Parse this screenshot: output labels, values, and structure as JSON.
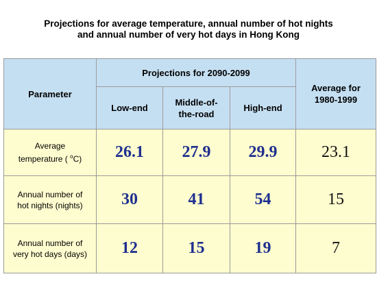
{
  "title": {
    "line1": "Projections for average temperature, annual number of hot nights",
    "line2": "and annual number of very hot days in Hong Kong"
  },
  "table": {
    "header": {
      "parameter": "Parameter",
      "projection_group": "Projections for 2090-2099",
      "low_end": "Low-end",
      "middle_line1": "Middle-of-",
      "middle_line2": "the-road",
      "high_end": "High-end",
      "average_line1": "Average for",
      "average_line2": "1980-1999"
    },
    "rows": [
      {
        "param_line1": "Average",
        "param_line2_pre": "temperature ( ",
        "param_sup": "o",
        "param_line2_post": "C)",
        "low": "26.1",
        "mid": "27.9",
        "high": "29.9",
        "avg": "23.1"
      },
      {
        "param_line1": "Annual number of",
        "param_line2": "hot nights (nights)",
        "low": "30",
        "mid": "41",
        "high": "54",
        "avg": "15"
      },
      {
        "param_line1": "Annual number of",
        "param_line2": "very hot days (days)",
        "low": "12",
        "mid": "15",
        "high": "19",
        "avg": "7"
      }
    ]
  },
  "colors": {
    "header_bg": "#c5dff2",
    "body_bg": "#fefdcf",
    "projection_value": "#1f2f8f",
    "border": "#9a9a9a"
  }
}
